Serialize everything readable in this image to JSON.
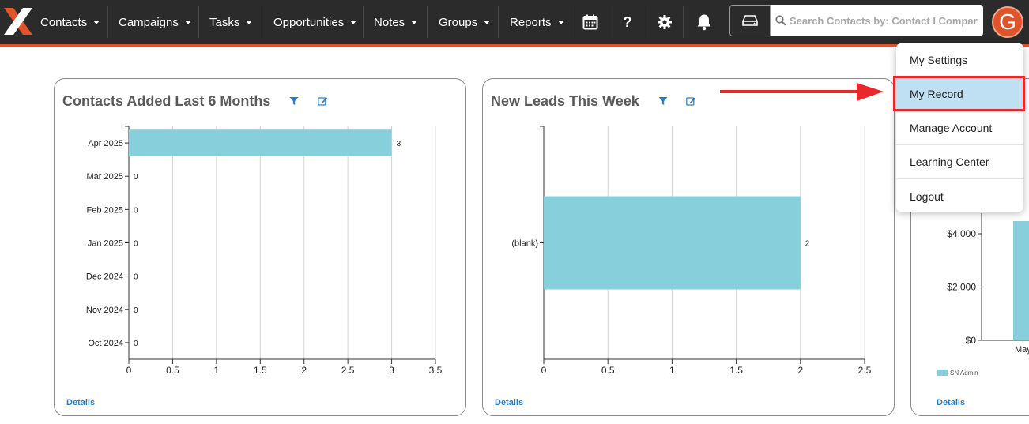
{
  "nav": {
    "items": [
      {
        "label": "Contacts"
      },
      {
        "label": "Campaigns"
      },
      {
        "label": "Tasks"
      },
      {
        "label": "Opportunities"
      },
      {
        "label": "Notes"
      },
      {
        "label": "Groups"
      },
      {
        "label": "Reports"
      }
    ],
    "help_label": "?",
    "search_placeholder": "Search Contacts by: Contact I Compar",
    "avatar_letter": "G"
  },
  "user_menu": {
    "items": [
      "My Settings",
      "My Record",
      "Manage Account",
      "Learning Center",
      "Logout"
    ],
    "active": "My Record"
  },
  "cards": [
    {
      "title": "Contacts Added Last 6 Months",
      "details_label": "Details",
      "chart_data": {
        "type": "bar",
        "orientation": "horizontal",
        "categories": [
          "Apr 2025",
          "Mar 2025",
          "Feb 2025",
          "Jan 2025",
          "Dec 2024",
          "Nov 2024",
          "Oct 2024"
        ],
        "values": [
          3,
          0,
          0,
          0,
          0,
          0,
          0
        ],
        "xlim": [
          0,
          3.5
        ],
        "xticks": [
          "0",
          "0.5",
          "1",
          "1.5",
          "2",
          "2.5",
          "3",
          "3.5"
        ],
        "grid": true,
        "bar_color": "#87cfdb"
      }
    },
    {
      "title": "New Leads This Week",
      "details_label": "Details",
      "chart_data": {
        "type": "bar",
        "orientation": "horizontal",
        "categories": [
          "(blank)"
        ],
        "values": [
          2
        ],
        "xlim": [
          0,
          2.5
        ],
        "xticks": [
          "0",
          "0.5",
          "1",
          "1.5",
          "2",
          "2.5"
        ],
        "grid": true,
        "bar_color": "#87cfdb"
      }
    },
    {
      "title": "",
      "details_label": "Details",
      "chart_data": {
        "type": "bar",
        "yticks": [
          "$4,000",
          "$2,000",
          "$0"
        ],
        "x_label_partial": "May",
        "legend": [
          "SN Admin"
        ],
        "bar_color": "#87cfdb"
      }
    }
  ],
  "colors": {
    "nav_bg": "#2b2b2b",
    "accent": "#e0542b",
    "bar": "#87cfdb",
    "link": "#2a7fc4",
    "highlight": "#e8282a"
  }
}
